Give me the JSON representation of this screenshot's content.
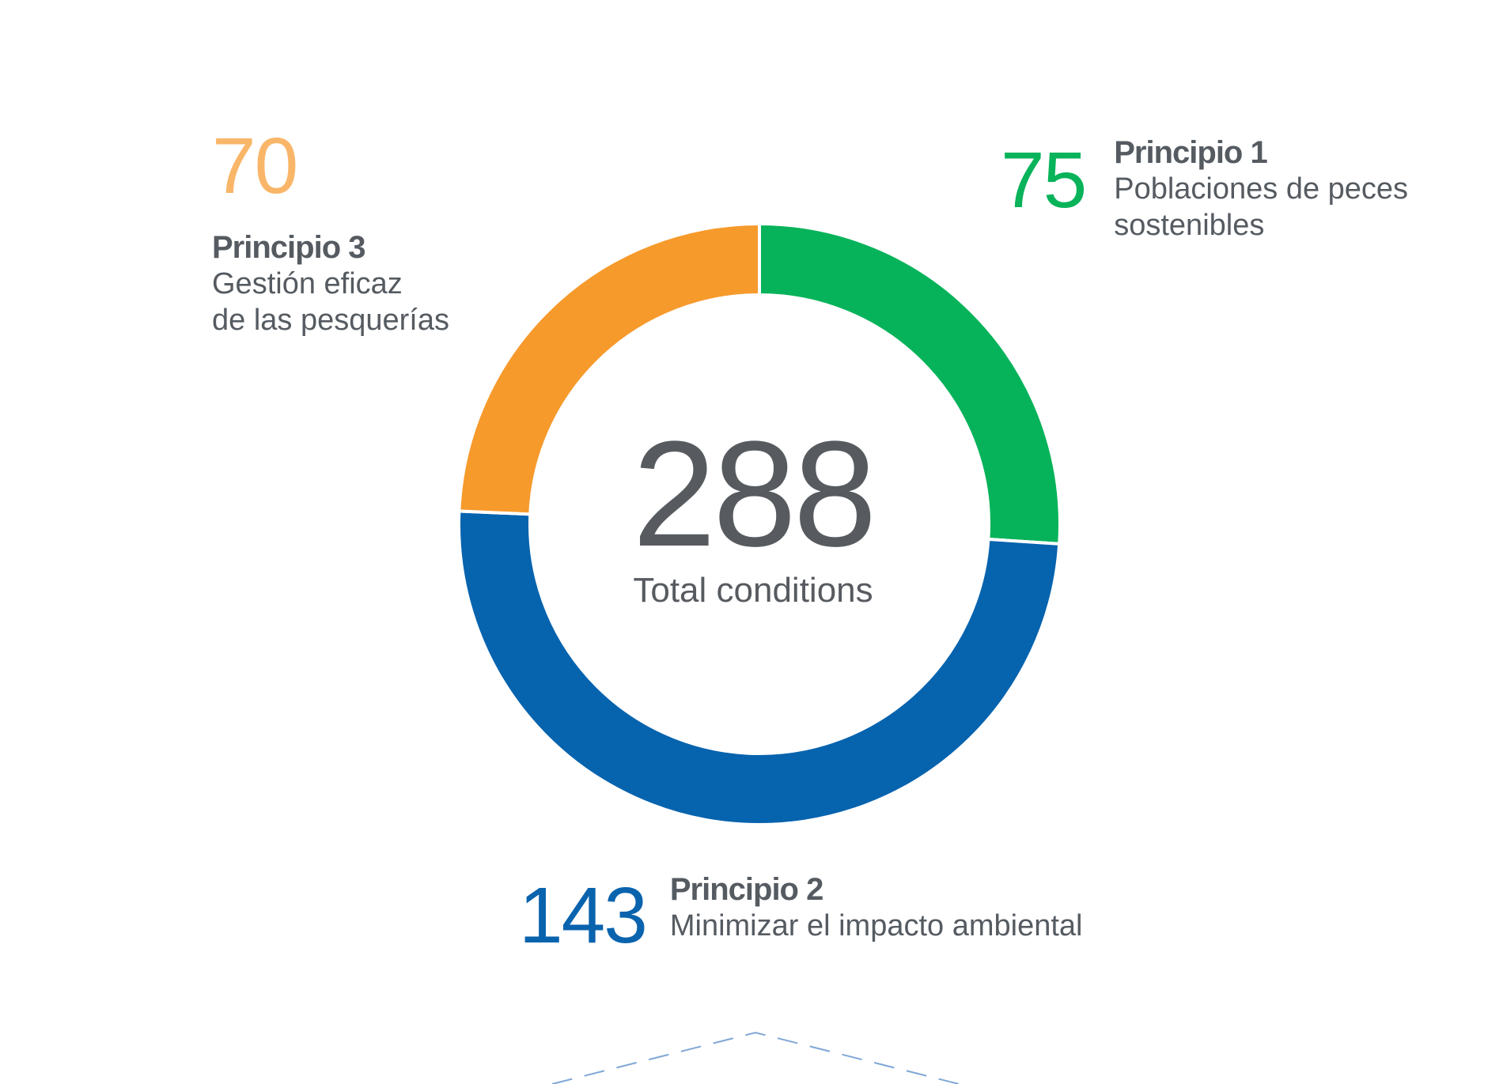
{
  "chart_data": {
    "type": "pie",
    "donut": true,
    "total": "288",
    "total_label": "Total conditions",
    "series": [
      {
        "key": "p1",
        "value": 75,
        "value_label": "75",
        "title": "Principio 1",
        "description": [
          "Poblaciones de peces",
          "sostenibles"
        ],
        "color": "#07b35a",
        "value_color": "#08b35a"
      },
      {
        "key": "p2",
        "value": 143,
        "value_label": "143",
        "title": "Principio 2",
        "description": [
          "Minimizar el impacto ambiental"
        ],
        "color": "#0663ae",
        "value_color": "#0a63ad"
      },
      {
        "key": "p3",
        "value": 70,
        "value_label": "70",
        "title": "Principio 3",
        "description": [
          "Gestión eficaz",
          "de las pesquerías"
        ],
        "color": "#f69a2c",
        "value_color": "#f9b669"
      }
    ]
  }
}
